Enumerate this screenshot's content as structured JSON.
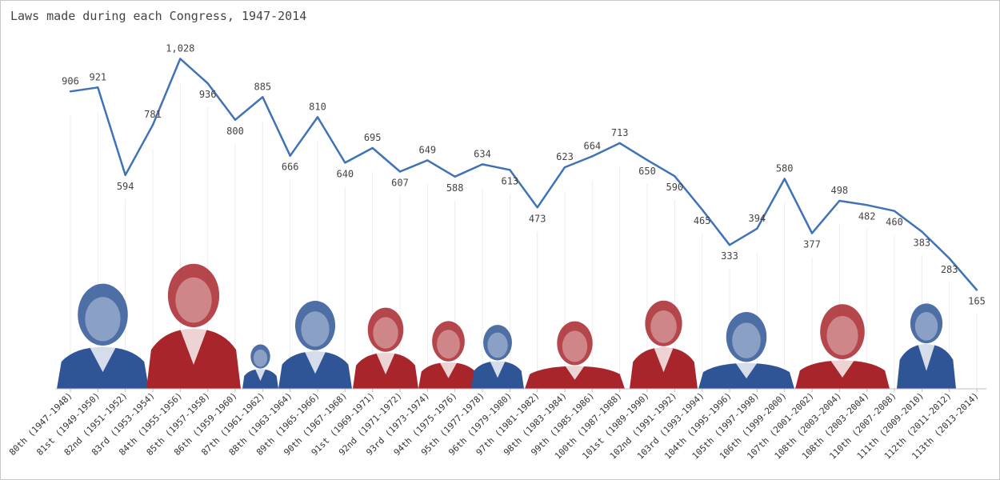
{
  "chart_data": {
    "type": "line",
    "title": "Laws made during each Congress, 1947-2014",
    "xlabel": "",
    "ylabel": "",
    "ylim": [
      0,
      1100
    ],
    "grid": false,
    "legend": "none",
    "line_color": "#3f73b6",
    "categories": [
      "80th (1947-1948)",
      "81st (1949-1950)",
      "82nd (1951-1952)",
      "83rd (1953-1954)",
      "84th (1955-1956)",
      "85th (1957-1958)",
      "86th (1959-1960)",
      "87th (1961-1962)",
      "88th (1963-1964)",
      "89th (1965-1966)",
      "90th (1967-1968)",
      "91st (1969-1971)",
      "92nd (1971-1972)",
      "93rd (1973-1974)",
      "94th (1975-1976)",
      "95th (1977-1978)",
      "96th (1979-1980)",
      "97th (1981-1982)",
      "98th (1983-1984)",
      "99th (1985-1986)",
      "100th (1987-1988)",
      "101st (1989-1990)",
      "102nd (1991-1992)",
      "103rd (1993-1994)",
      "104th (1995-1996)",
      "105th (1997-1998)",
      "106th (1999-2000)",
      "107th (2001-2002)",
      "108th (2003-2004)",
      "108th (2003-2004)",
      "110th (2007-2008)",
      "111th (2009-2010)",
      "112th (2011-2012)",
      "113th (2013-2014)"
    ],
    "series": [
      {
        "name": "Laws made",
        "values": [
          906,
          921,
          594,
          781,
          1028,
          936,
          800,
          885,
          666,
          810,
          640,
          695,
          607,
          649,
          588,
          634,
          613,
          473,
          623,
          664,
          713,
          650,
          590,
          465,
          333,
          394,
          580,
          377,
          498,
          482,
          460,
          383,
          283,
          165
        ],
        "data_labels": [
          "906",
          "921",
          "594",
          "781",
          "1,028",
          "936",
          "800",
          "885",
          "666",
          "810",
          "640",
          "695",
          "607",
          "649",
          "588",
          "634",
          "613",
          "473",
          "623",
          "664",
          "713",
          "650",
          "590",
          "465",
          "333",
          "394",
          "580",
          "377",
          "498",
          "482",
          "460",
          "383",
          "283",
          "165"
        ]
      }
    ],
    "portraits": [
      {
        "name": "truman-portrait",
        "color": "#2f5597"
      },
      {
        "name": "eisenhower-portrait",
        "color": "#a8262b"
      },
      {
        "name": "kennedy-portrait",
        "color": "#2f5597"
      },
      {
        "name": "johnson-portrait",
        "color": "#2f5597"
      },
      {
        "name": "nixon-portrait",
        "color": "#a8262b"
      },
      {
        "name": "ford-portrait",
        "color": "#a8262b"
      },
      {
        "name": "carter-portrait",
        "color": "#2f5597"
      },
      {
        "name": "reagan-portrait",
        "color": "#a8262b"
      },
      {
        "name": "bush-sr-portrait",
        "color": "#a8262b"
      },
      {
        "name": "clinton-portrait",
        "color": "#2f5597"
      },
      {
        "name": "bush-jr-portrait",
        "color": "#a8262b"
      },
      {
        "name": "obama-portrait",
        "color": "#2f5597"
      }
    ]
  }
}
